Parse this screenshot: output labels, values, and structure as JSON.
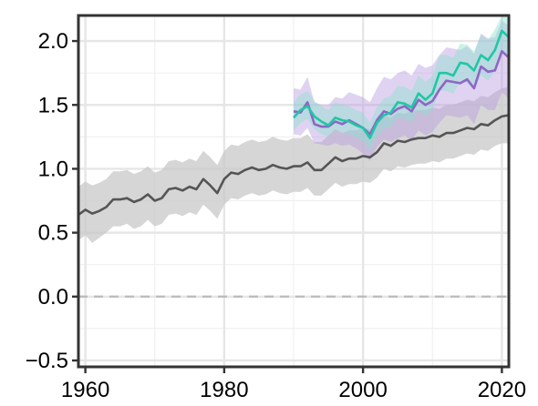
{
  "chart_data": {
    "type": "line",
    "title": "",
    "xlabel": "",
    "ylabel": "",
    "xlim": [
      1959,
      2021
    ],
    "ylim": [
      -0.55,
      2.2
    ],
    "x_ticks": [
      1960,
      1980,
      2000,
      2020
    ],
    "x_tick_labels": [
      "1960",
      "1980",
      "2000",
      "2020"
    ],
    "y_ticks": [
      -0.5,
      0.0,
      0.5,
      1.0,
      1.5,
      2.0
    ],
    "y_tick_labels": [
      "−0.5",
      "0.0",
      "0.5",
      "1.0",
      "1.5",
      "2.0"
    ],
    "reference_line": {
      "y": 0.0,
      "style": "dashed",
      "color": "#bdbdbd"
    },
    "grid": true,
    "legend": "none",
    "series": [
      {
        "color": "#555555",
        "band_color": "#c8c8c8",
        "x": [
          1959,
          1960,
          1961,
          1962,
          1963,
          1964,
          1965,
          1966,
          1967,
          1968,
          1969,
          1970,
          1971,
          1972,
          1973,
          1974,
          1975,
          1976,
          1977,
          1978,
          1979,
          1980,
          1981,
          1982,
          1983,
          1984,
          1985,
          1986,
          1987,
          1988,
          1989,
          1990,
          1991,
          1992,
          1993,
          1994,
          1995,
          1996,
          1997,
          1998,
          1999,
          2000,
          2001,
          2002,
          2003,
          2004,
          2005,
          2006,
          2007,
          2008,
          2009,
          2010,
          2011,
          2012,
          2013,
          2014,
          2015,
          2016,
          2017,
          2018,
          2019,
          2020,
          2021
        ],
        "values": [
          0.64,
          0.68,
          0.65,
          0.67,
          0.7,
          0.76,
          0.76,
          0.77,
          0.74,
          0.76,
          0.8,
          0.75,
          0.77,
          0.84,
          0.85,
          0.83,
          0.86,
          0.84,
          0.92,
          0.87,
          0.81,
          0.92,
          0.97,
          0.96,
          0.99,
          1.01,
          0.99,
          1.0,
          1.03,
          1.01,
          1.0,
          1.02,
          1.02,
          1.05,
          0.99,
          0.99,
          1.04,
          1.09,
          1.06,
          1.08,
          1.08,
          1.1,
          1.09,
          1.13,
          1.2,
          1.18,
          1.22,
          1.21,
          1.23,
          1.24,
          1.24,
          1.26,
          1.25,
          1.28,
          1.28,
          1.3,
          1.32,
          1.31,
          1.35,
          1.34,
          1.38,
          1.41,
          1.42
        ],
        "lower": [
          0.44,
          0.48,
          0.42,
          0.46,
          0.5,
          0.55,
          0.55,
          0.57,
          0.53,
          0.55,
          0.6,
          0.55,
          0.57,
          0.64,
          0.65,
          0.63,
          0.66,
          0.64,
          0.72,
          0.67,
          0.61,
          0.72,
          0.77,
          0.76,
          0.79,
          0.81,
          0.79,
          0.8,
          0.83,
          0.81,
          0.8,
          0.82,
          0.82,
          0.85,
          0.79,
          0.79,
          0.84,
          0.89,
          0.86,
          0.88,
          0.88,
          0.9,
          0.89,
          0.93,
          1.0,
          0.98,
          1.02,
          1.01,
          1.03,
          1.04,
          1.04,
          1.06,
          1.05,
          1.08,
          1.08,
          1.1,
          1.12,
          1.11,
          1.15,
          1.14,
          1.18,
          1.2,
          1.2
        ],
        "upper": [
          0.86,
          0.9,
          0.87,
          0.89,
          0.92,
          0.98,
          0.98,
          0.99,
          0.96,
          0.98,
          1.02,
          0.97,
          0.99,
          1.06,
          1.07,
          1.05,
          1.08,
          1.06,
          1.14,
          1.09,
          1.03,
          1.14,
          1.19,
          1.18,
          1.21,
          1.23,
          1.21,
          1.22,
          1.25,
          1.23,
          1.22,
          1.24,
          1.24,
          1.27,
          1.21,
          1.21,
          1.26,
          1.31,
          1.28,
          1.3,
          1.3,
          1.32,
          1.31,
          1.35,
          1.42,
          1.4,
          1.44,
          1.43,
          1.45,
          1.46,
          1.46,
          1.48,
          1.47,
          1.5,
          1.5,
          1.52,
          1.54,
          1.53,
          1.57,
          1.56,
          1.6,
          1.63,
          1.64
        ]
      },
      {
        "color": "#8e66c4",
        "band_color": "#b89ee0",
        "x": [
          1990,
          1991,
          1992,
          1993,
          1994,
          1995,
          1996,
          1997,
          1998,
          1999,
          2000,
          2001,
          2002,
          2003,
          2004,
          2005,
          2006,
          2007,
          2008,
          2009,
          2010,
          2011,
          2012,
          2013,
          2014,
          2015,
          2016,
          2017,
          2018,
          2019,
          2020,
          2021
        ],
        "values": [
          1.45,
          1.44,
          1.52,
          1.35,
          1.33,
          1.33,
          1.37,
          1.35,
          1.38,
          1.35,
          1.32,
          1.27,
          1.38,
          1.45,
          1.43,
          1.47,
          1.49,
          1.45,
          1.54,
          1.5,
          1.53,
          1.62,
          1.69,
          1.68,
          1.67,
          1.7,
          1.63,
          1.8,
          1.76,
          1.77,
          1.92,
          1.87
        ],
        "lower": [
          1.27,
          1.26,
          1.32,
          1.2,
          1.19,
          1.18,
          1.2,
          1.18,
          1.19,
          1.16,
          1.12,
          1.06,
          1.17,
          1.23,
          1.21,
          1.24,
          1.26,
          1.22,
          1.3,
          1.26,
          1.29,
          1.36,
          1.42,
          1.41,
          1.4,
          1.42,
          1.35,
          1.5,
          1.46,
          1.46,
          1.6,
          1.55
        ],
        "upper": [
          1.63,
          1.62,
          1.72,
          1.52,
          1.5,
          1.5,
          1.56,
          1.55,
          1.6,
          1.58,
          1.56,
          1.52,
          1.63,
          1.72,
          1.7,
          1.75,
          1.77,
          1.73,
          1.82,
          1.79,
          1.81,
          1.89,
          1.95,
          1.94,
          1.93,
          1.96,
          1.9,
          2.06,
          2.02,
          2.03,
          2.16,
          2.12
        ]
      },
      {
        "color": "#1fc7a5",
        "band_color": "#8fe0cf",
        "x": [
          1990,
          1991,
          1992,
          1993,
          1994,
          1995,
          1996,
          1997,
          1998,
          1999,
          2000,
          2001,
          2002,
          2003,
          2004,
          2005,
          2006,
          2007,
          2008,
          2009,
          2010,
          2011,
          2012,
          2013,
          2014,
          2015,
          2016,
          2017,
          2018,
          2019,
          2020,
          2021
        ],
        "values": [
          1.4,
          1.46,
          1.49,
          1.41,
          1.37,
          1.34,
          1.4,
          1.38,
          1.37,
          1.34,
          1.32,
          1.24,
          1.36,
          1.42,
          1.44,
          1.52,
          1.51,
          1.48,
          1.59,
          1.54,
          1.59,
          1.75,
          1.75,
          1.73,
          1.83,
          1.82,
          1.77,
          1.89,
          1.85,
          1.93,
          2.08,
          2.03
        ],
        "lower": [
          1.3,
          1.36,
          1.39,
          1.31,
          1.27,
          1.25,
          1.3,
          1.28,
          1.27,
          1.24,
          1.22,
          1.14,
          1.25,
          1.31,
          1.33,
          1.4,
          1.39,
          1.36,
          1.46,
          1.41,
          1.46,
          1.61,
          1.61,
          1.59,
          1.68,
          1.67,
          1.62,
          1.73,
          1.69,
          1.77,
          1.92,
          1.87
        ],
        "upper": [
          1.52,
          1.58,
          1.61,
          1.53,
          1.49,
          1.46,
          1.52,
          1.5,
          1.49,
          1.46,
          1.44,
          1.36,
          1.48,
          1.55,
          1.57,
          1.65,
          1.64,
          1.61,
          1.73,
          1.68,
          1.73,
          1.89,
          1.89,
          1.87,
          1.98,
          1.97,
          1.92,
          2.05,
          2.01,
          2.09,
          2.2,
          2.18
        ]
      }
    ]
  }
}
